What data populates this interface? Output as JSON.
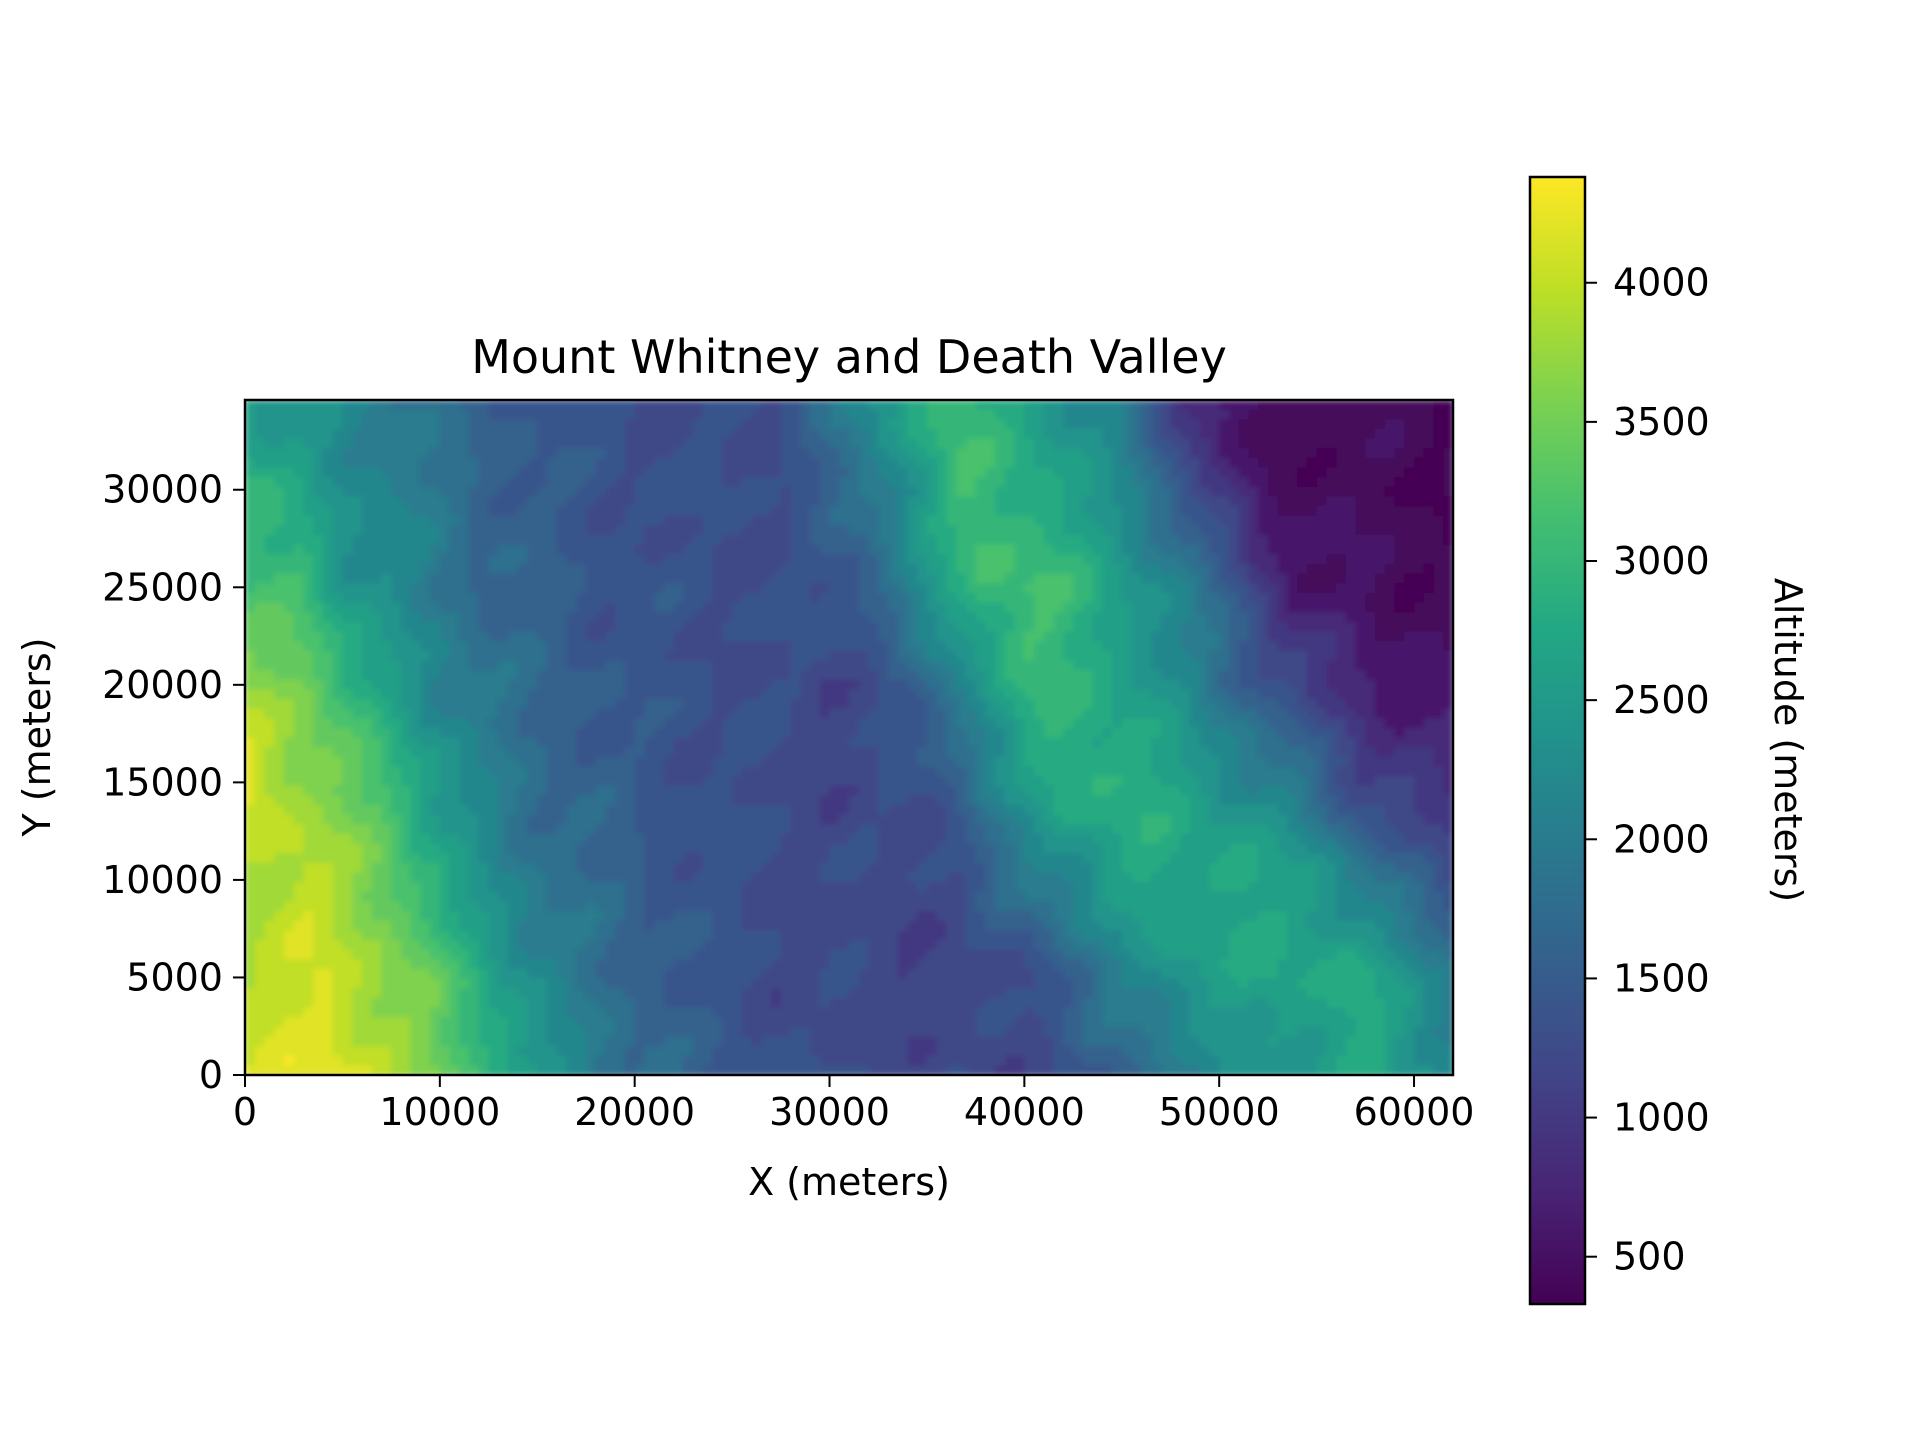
{
  "chart_data": {
    "type": "heatmap",
    "title": "Mount Whitney and Death Valley",
    "xlabel": "X (meters)",
    "ylabel": "Y (meters)",
    "xlim": [
      0,
      62000
    ],
    "ylim": [
      0,
      34600
    ],
    "xticks": [
      0,
      10000,
      20000,
      30000,
      40000,
      50000,
      60000
    ],
    "xtick_labels": [
      "0",
      "10000",
      "20000",
      "30000",
      "40000",
      "50000",
      "60000"
    ],
    "yticks": [
      0,
      5000,
      10000,
      15000,
      20000,
      25000,
      30000
    ],
    "ytick_labels": [
      "0",
      "5000",
      "10000",
      "15000",
      "20000",
      "25000",
      "30000"
    ],
    "grid": false,
    "colormap": "viridis",
    "colorbar": {
      "label": "Altitude (meters)",
      "range": [
        330,
        4380
      ],
      "ticks": [
        500,
        1000,
        1500,
        2000,
        2500,
        3000,
        3500,
        4000
      ],
      "tick_labels": [
        "500",
        "1000",
        "1500",
        "2000",
        "2500",
        "3000",
        "3500",
        "4000"
      ]
    },
    "terrain_profiles": {
      "y": [
        0,
        5000,
        10000,
        15000,
        20000,
        25000,
        30000,
        34600
      ],
      "points": [
        [
          [
            0,
            4100
          ],
          [
            5000,
            4200
          ],
          [
            10000,
            3500
          ],
          [
            14000,
            2700
          ],
          [
            18000,
            2000
          ],
          [
            23000,
            1550
          ],
          [
            28000,
            1300
          ],
          [
            35000,
            1200
          ],
          [
            42000,
            1300
          ],
          [
            46000,
            1700
          ],
          [
            50000,
            2200
          ],
          [
            55000,
            2500
          ],
          [
            58000,
            2800
          ],
          [
            62000,
            2200
          ]
        ],
        [
          [
            0,
            3900
          ],
          [
            4000,
            4100
          ],
          [
            9000,
            3500
          ],
          [
            13000,
            2600
          ],
          [
            17000,
            1900
          ],
          [
            22000,
            1500
          ],
          [
            27000,
            1250
          ],
          [
            34000,
            1150
          ],
          [
            40000,
            1250
          ],
          [
            44000,
            1900
          ],
          [
            48000,
            2500
          ],
          [
            53000,
            2700
          ],
          [
            57000,
            2800
          ],
          [
            62000,
            2000
          ]
        ],
        [
          [
            0,
            3800
          ],
          [
            3000,
            4000
          ],
          [
            7000,
            3500
          ],
          [
            11000,
            2500
          ],
          [
            15000,
            1900
          ],
          [
            21000,
            1500
          ],
          [
            26000,
            1300
          ],
          [
            33000,
            1200
          ],
          [
            37000,
            1300
          ],
          [
            41000,
            2100
          ],
          [
            46000,
            2700
          ],
          [
            51000,
            2800
          ],
          [
            55000,
            2500
          ],
          [
            59000,
            1700
          ],
          [
            62000,
            1300
          ]
        ],
        [
          [
            0,
            4300
          ],
          [
            3000,
            3700
          ],
          [
            7000,
            3200
          ],
          [
            10000,
            2500
          ],
          [
            14000,
            1800
          ],
          [
            20000,
            1450
          ],
          [
            25000,
            1300
          ],
          [
            31000,
            1200
          ],
          [
            35000,
            1300
          ],
          [
            38000,
            2000
          ],
          [
            42000,
            2900
          ],
          [
            46000,
            2900
          ],
          [
            50000,
            2400
          ],
          [
            54000,
            1900
          ],
          [
            57000,
            1200
          ],
          [
            62000,
            800
          ]
        ],
        [
          [
            0,
            3700
          ],
          [
            3000,
            3600
          ],
          [
            6000,
            2800
          ],
          [
            9000,
            2300
          ],
          [
            13000,
            1800
          ],
          [
            19000,
            1450
          ],
          [
            24000,
            1350
          ],
          [
            30000,
            1200
          ],
          [
            34000,
            1400
          ],
          [
            37000,
            2200
          ],
          [
            40000,
            3000
          ],
          [
            44000,
            2800
          ],
          [
            48000,
            2200
          ],
          [
            52000,
            1500
          ],
          [
            56000,
            900
          ],
          [
            59000,
            600
          ],
          [
            62000,
            550
          ]
        ],
        [
          [
            0,
            3000
          ],
          [
            3000,
            3100
          ],
          [
            5000,
            2500
          ],
          [
            8000,
            2200
          ],
          [
            12000,
            1700
          ],
          [
            18000,
            1400
          ],
          [
            24000,
            1300
          ],
          [
            29000,
            1300
          ],
          [
            32000,
            1600
          ],
          [
            35000,
            2400
          ],
          [
            38000,
            3100
          ],
          [
            41000,
            3200
          ],
          [
            44000,
            2700
          ],
          [
            48000,
            2100
          ],
          [
            51000,
            1400
          ],
          [
            54000,
            600
          ],
          [
            62000,
            330
          ]
        ],
        [
          [
            0,
            3000
          ],
          [
            3000,
            2600
          ],
          [
            5000,
            2300
          ],
          [
            8000,
            2100
          ],
          [
            12000,
            1700
          ],
          [
            17000,
            1400
          ],
          [
            23000,
            1300
          ],
          [
            28000,
            1300
          ],
          [
            31000,
            1700
          ],
          [
            34000,
            2400
          ],
          [
            37000,
            3100
          ],
          [
            40000,
            2900
          ],
          [
            43000,
            2500
          ],
          [
            46000,
            2000
          ],
          [
            49000,
            1200
          ],
          [
            52000,
            500
          ],
          [
            62000,
            330
          ]
        ],
        [
          [
            0,
            2500
          ],
          [
            3000,
            2300
          ],
          [
            6000,
            2100
          ],
          [
            10000,
            1700
          ],
          [
            15000,
            1450
          ],
          [
            21000,
            1300
          ],
          [
            27000,
            1300
          ],
          [
            30000,
            1800
          ],
          [
            33000,
            2500
          ],
          [
            36000,
            3100
          ],
          [
            39000,
            2800
          ],
          [
            42000,
            2400
          ],
          [
            45000,
            2000
          ],
          [
            48000,
            1000
          ],
          [
            51000,
            400
          ],
          [
            62000,
            330
          ]
        ]
      ]
    }
  }
}
